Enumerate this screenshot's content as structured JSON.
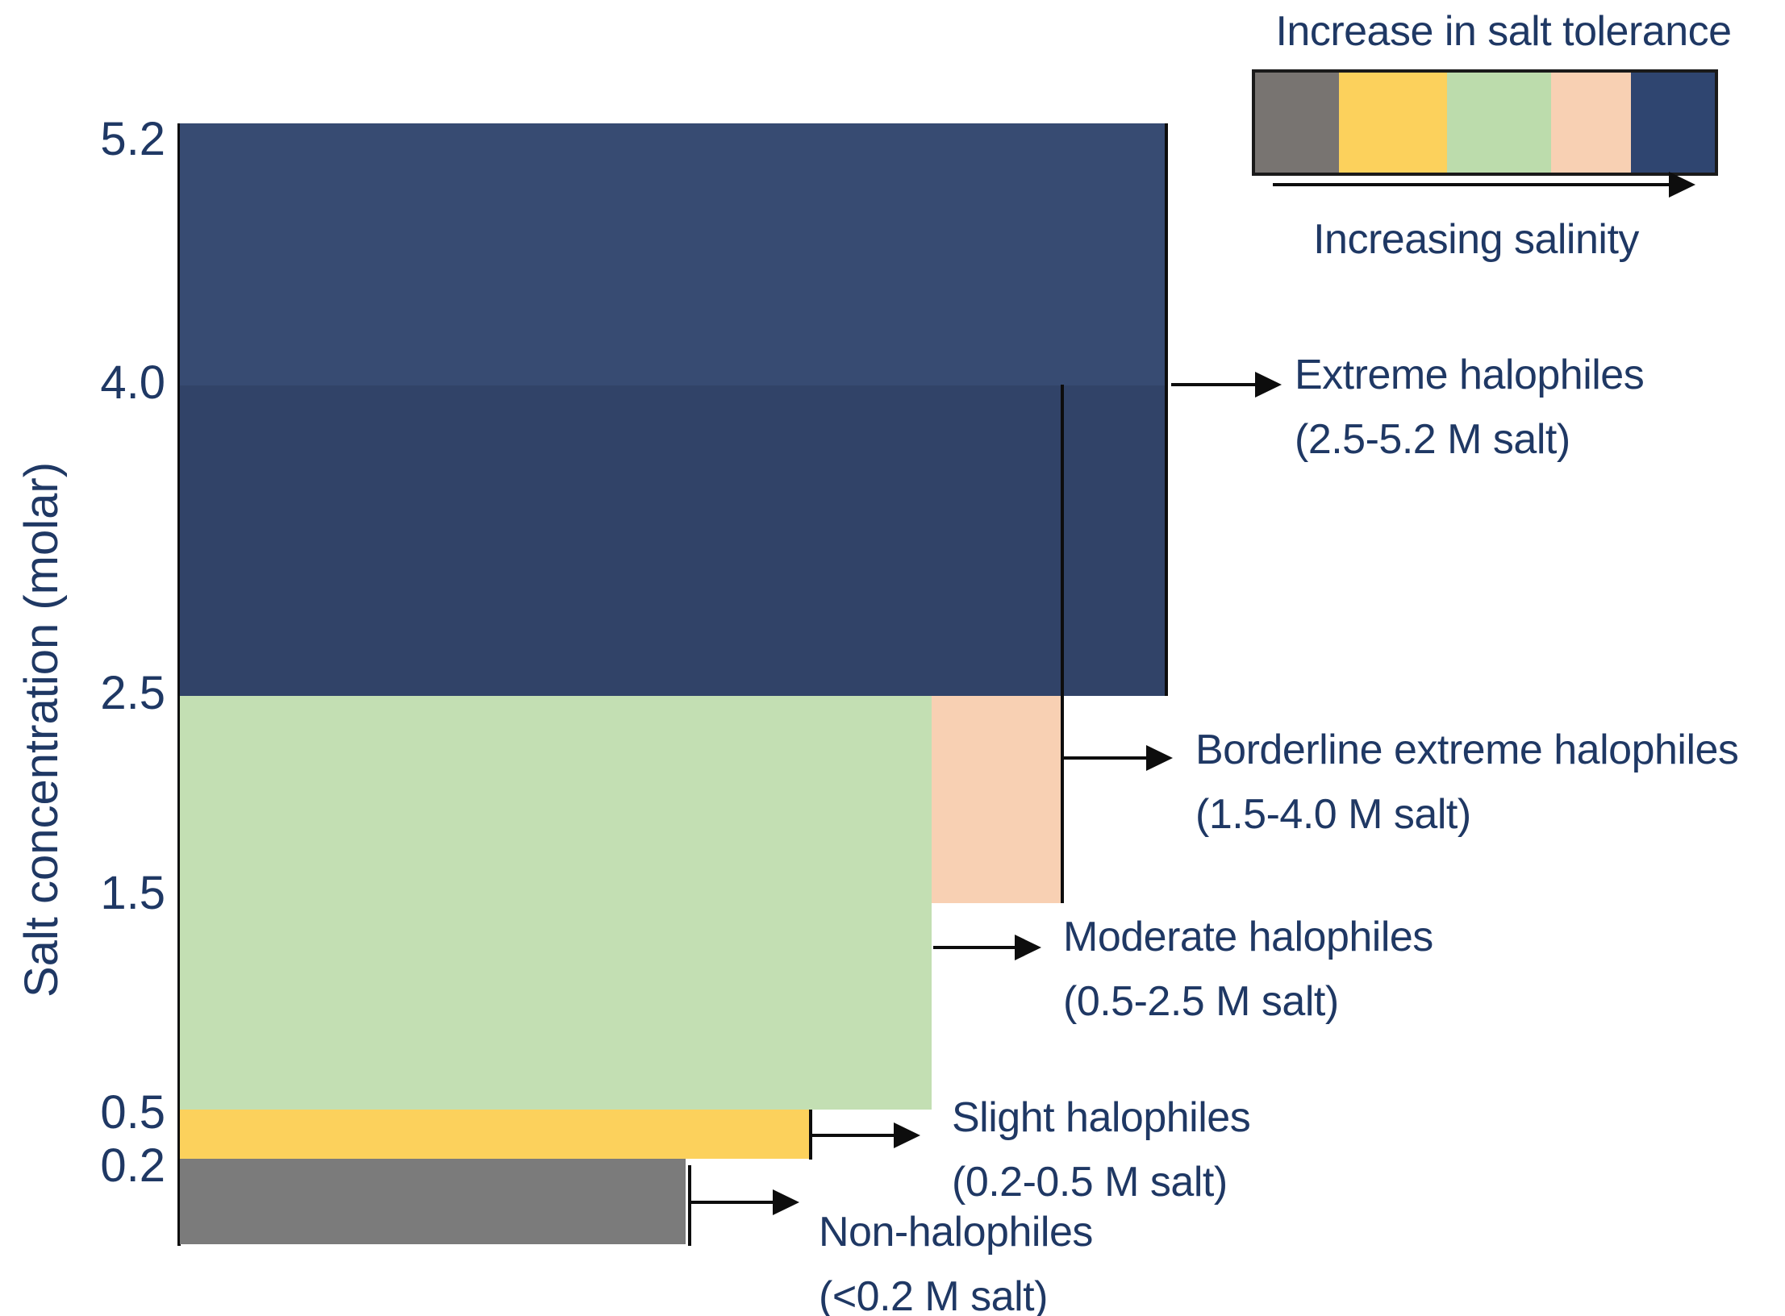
{
  "figure": {
    "y_axis": {
      "title": "Salt concentration (molar)",
      "ticks": [
        "5.2",
        "4.0",
        "2.5",
        "1.5",
        "0.5",
        "0.2"
      ]
    },
    "legend": {
      "title": "Increase in salt tolerance",
      "arrow_label": "Increasing salinity",
      "swatches": [
        "gray",
        "yellow",
        "green",
        "peach",
        "navy"
      ]
    },
    "categories": [
      {
        "name": "Extreme halophiles",
        "range_label": "(2.5-5.2 M salt)"
      },
      {
        "name": "Borderline extreme halophiles",
        "range_label": "(1.5-4.0 M salt)"
      },
      {
        "name": "Moderate halophiles",
        "range_label": "(0.5-2.5 M salt)"
      },
      {
        "name": "Slight halophiles",
        "range_label": "(0.2-0.5 M salt)"
      },
      {
        "name": "Non-halophiles",
        "range_label": "(<0.2 M salt)"
      }
    ],
    "colors": {
      "extreme_bar_upper": "#374B72",
      "extreme_bar_lower": "#314368",
      "borderline_bar": "#F8D0B3",
      "moderate_bar": "#C3DFB3",
      "slight_bar": "#FCD15C",
      "non_bar": "#7B7B7B",
      "legend_gray": "#787471",
      "legend_yellow": "#FCD15C",
      "legend_green": "#BCDCAC",
      "legend_peach": "#F8D0B3",
      "legend_navy": "#2F4570",
      "text": "#1F3864",
      "line": "#0d0d0d",
      "background": "#ffffff"
    }
  },
  "chart_data": {
    "type": "bar",
    "subtype": "overlapping-range-columns",
    "title": "",
    "xlabel": "",
    "ylabel": "Salt concentration (molar)",
    "yticks": [
      0.2,
      0.5,
      1.5,
      2.5,
      4.0,
      5.2
    ],
    "ylim": [
      0,
      5.2
    ],
    "grid": false,
    "legend_position": "top-right",
    "series": [
      {
        "name": "Non-halophiles",
        "range_molar": [
          0,
          0.2
        ],
        "annotation": "(<0.2 M salt)",
        "color": "#7B7B7B"
      },
      {
        "name": "Slight halophiles",
        "range_molar": [
          0.2,
          0.5
        ],
        "annotation": "(0.2-0.5 M salt)",
        "color": "#FCD15C"
      },
      {
        "name": "Moderate halophiles",
        "range_molar": [
          0.5,
          2.5
        ],
        "annotation": "(0.5-2.5 M salt)",
        "color": "#C3DFB3"
      },
      {
        "name": "Borderline extreme halophiles",
        "range_molar": [
          1.5,
          4.0
        ],
        "annotation": "(1.5-4.0 M salt)",
        "color": "#F8D0B3"
      },
      {
        "name": "Extreme halophiles",
        "range_molar": [
          2.5,
          5.2
        ],
        "annotation": "(2.5-5.2 M salt)",
        "color": "#334569"
      }
    ],
    "annotations": [
      "Increase in salt tolerance",
      "Increasing salinity"
    ]
  }
}
